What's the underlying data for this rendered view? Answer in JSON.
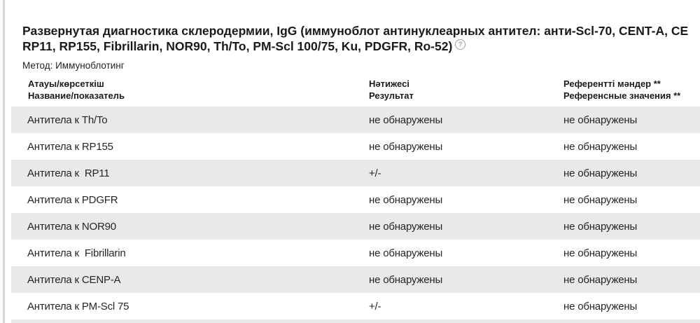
{
  "page": {
    "title_line1": "Развернутая диагностика склеродермии, IgG (иммуноблот антинуклеарных антител: анти-Scl-70, CENT-A, CE",
    "title_line2": "RP11, RP155, Fibrillarin, NOR90, Th/To, PM-Scl 100/75, Ku, PDGFR, Ro-52)",
    "help_icon_glyph": "?",
    "method_line": "Метод: Иммуноблотинг"
  },
  "colors": {
    "row_stripe_bg": "#e9e9e9",
    "page_edge": "#d7d7d7",
    "text_primary": "#1a1a1a"
  },
  "table": {
    "headers": {
      "name_kk": "Атауы/көрсеткіш",
      "name_ru": "Название/показатель",
      "result_kk": "Нәтижесі",
      "result_ru": "Результат",
      "reference_kk": "Референтті мәндер **",
      "reference_ru": "Референсные значения **"
    },
    "rows": [
      {
        "name": "Антитела к Th/To",
        "result": "не обнаружены",
        "reference": "не обнаружены"
      },
      {
        "name": "Антитела к RP155",
        "result": "не обнаружены",
        "reference": "не обнаружены"
      },
      {
        "name": "Антитела к  RP11",
        "result": "+/-",
        "reference": "не обнаружены"
      },
      {
        "name": "Антитела к PDGFR",
        "result": "не обнаружены",
        "reference": "не обнаружены"
      },
      {
        "name": "Антитела к NOR90",
        "result": "не обнаружены",
        "reference": "не обнаружены"
      },
      {
        "name": "Антитела к  Fibrillarin",
        "result": "не обнаружены",
        "reference": "не обнаружены"
      },
      {
        "name": "Антитела к CENP-A",
        "result": "не обнаружены",
        "reference": "не обнаружены"
      },
      {
        "name": "Антитела к PM-Scl 75",
        "result": "+/-",
        "reference": "не обнаружены"
      }
    ]
  }
}
